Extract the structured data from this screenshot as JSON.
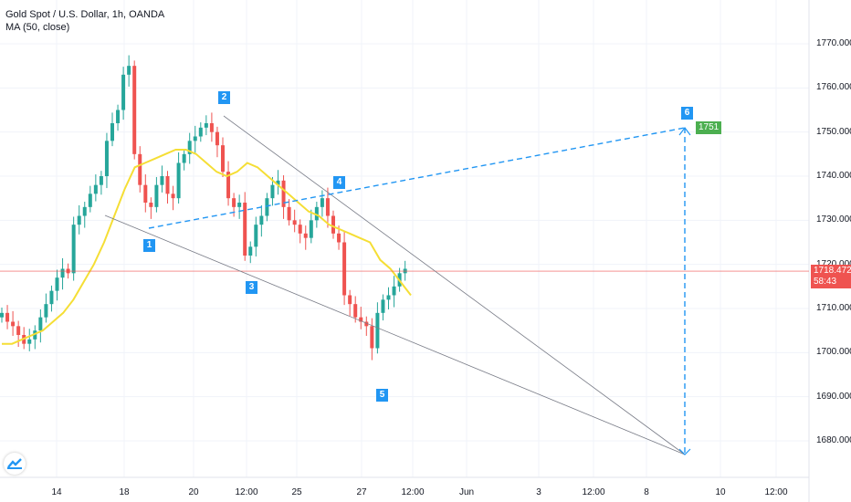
{
  "header": {
    "symbol_title": "Gold Spot / U.S. Dollar, 1h, OANDA",
    "indicator": "MA (50, close)"
  },
  "colors": {
    "up": "#26a69a",
    "down": "#ef5350",
    "ma": "#f5de35",
    "line": "#787b86",
    "dashed": "#2196f3",
    "price_badge": "#ef5350",
    "target_badge": "#4caf50"
  },
  "price_badge": {
    "price": "1718.472",
    "countdown": "58:43"
  },
  "target_badge": "1751",
  "points": [
    {
      "label": "1",
      "x_idx": 26,
      "price": 1726.5
    },
    {
      "label": "2",
      "x_idx": 43,
      "price": 1754
    },
    {
      "label": "3",
      "x_idx": 48,
      "price": 1718
    },
    {
      "label": "4",
      "x_idx": 64,
      "price": 1736
    },
    {
      "label": "5",
      "x_idx": 72,
      "price": 1694
    },
    {
      "label": "6",
      "x_idx": 132,
      "price": 1751
    }
  ],
  "chart_data": {
    "type": "candlestick",
    "y_ticks": [
      "1770.000",
      "1760.000",
      "1750.000",
      "1740.000",
      "1730.000",
      "1720.000",
      "1710.000",
      "1700.000",
      "1690.000",
      "1680.000"
    ],
    "y_tick_values": [
      1770,
      1760,
      1750,
      1740,
      1730,
      1720,
      1710,
      1700,
      1690,
      1680
    ],
    "x_ticks": [
      "14",
      "18",
      "20",
      "12:00",
      "25",
      "27",
      "12:00",
      "Jun",
      "3",
      "12:00",
      "8",
      "10",
      "12:00"
    ],
    "ylim": [
      1670,
      1780
    ],
    "current_price": 1718.472,
    "candles_close": [
      1709,
      1707,
      1706,
      1704,
      1702,
      1703,
      1705,
      1708,
      1711,
      1714,
      1717,
      1719,
      1718,
      1729,
      1731,
      1733,
      1736,
      1738,
      1740,
      1748,
      1752,
      1755,
      1763,
      1765,
      1745,
      1738,
      1734,
      1733,
      1738,
      1740,
      1736,
      1735,
      1743,
      1745,
      1748,
      1749,
      1751,
      1752,
      1750,
      1747,
      1741,
      1735,
      1733,
      1734,
      1722,
      1724,
      1729,
      1731,
      1735,
      1738,
      1739,
      1733,
      1730,
      1729,
      1727,
      1726,
      1730,
      1733,
      1735,
      1731,
      1727,
      1725,
      1713,
      1711,
      1708,
      1707,
      1706,
      1701,
      1709,
      1712,
      1713,
      1715,
      1718,
      1719
    ],
    "ma50": [
      1702,
      1702,
      1703,
      1704,
      1705,
      1707,
      1709,
      1712,
      1716,
      1720,
      1725,
      1731,
      1737,
      1742,
      1743,
      1744,
      1745,
      1746,
      1746,
      1745,
      1743,
      1741,
      1740,
      1741,
      1743,
      1742,
      1740,
      1738,
      1736,
      1734,
      1732,
      1731,
      1729,
      1728,
      1727,
      1726,
      1725,
      1721,
      1719,
      1716,
      1713
    ]
  }
}
